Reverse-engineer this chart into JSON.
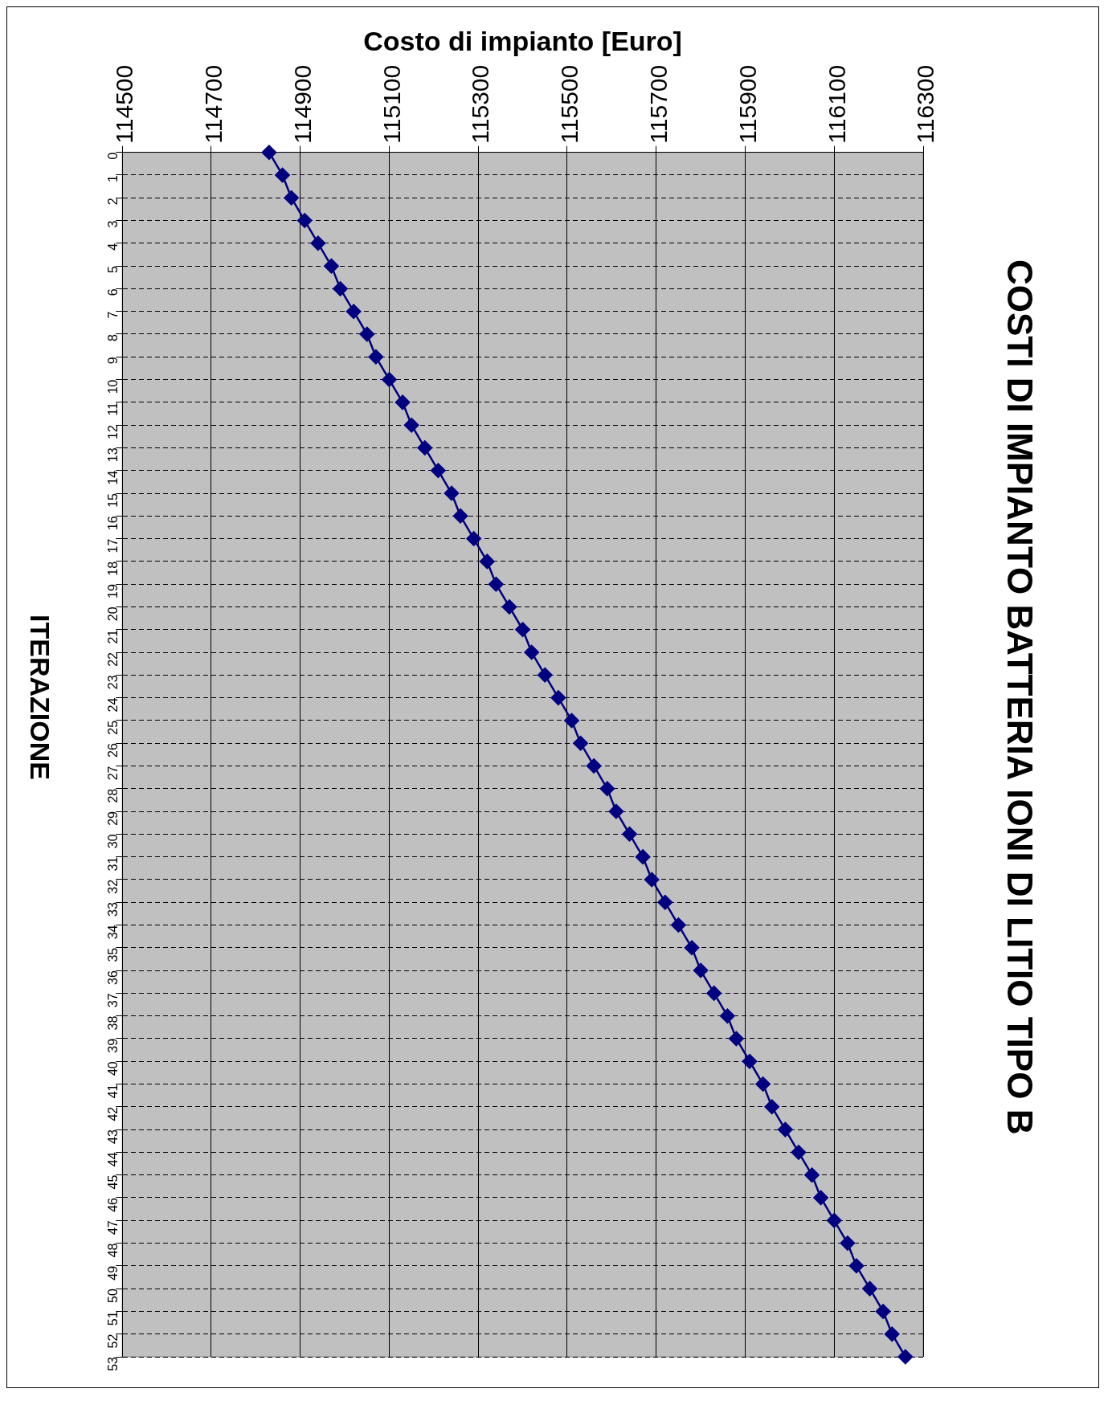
{
  "chart_data": {
    "type": "line",
    "title": "COSTI DI IMPIANTO BATTERIA IONI DI LITIO TIPO B",
    "xlabel": "Costo di impianto [Euro]",
    "ylabel": "ITERAZIONE",
    "orientation": "horizontal",
    "categories": [
      "0",
      "1",
      "2",
      "3",
      "4",
      "5",
      "6",
      "7",
      "8",
      "9",
      "10",
      "11",
      "12",
      "13",
      "14",
      "15",
      "16",
      "17",
      "18",
      "19",
      "20",
      "21",
      "22",
      "23",
      "24",
      "25",
      "26",
      "27",
      "28",
      "29",
      "30",
      "31",
      "32",
      "33",
      "34",
      "35",
      "36",
      "37",
      "38",
      "39",
      "40",
      "41",
      "42",
      "43",
      "44",
      "45",
      "46",
      "47",
      "48",
      "49",
      "50",
      "51",
      "52",
      "53"
    ],
    "series": [
      {
        "color": "#000080",
        "values": [
          114830,
          114860,
          114880,
          114910,
          114940,
          114970,
          114990,
          115020,
          115050,
          115070,
          115100,
          115130,
          115150,
          115180,
          115210,
          115240,
          115260,
          115290,
          115320,
          115340,
          115370,
          115400,
          115420,
          115450,
          115480,
          115510,
          115530,
          115560,
          115590,
          115610,
          115640,
          115670,
          115690,
          115720,
          115750,
          115780,
          115800,
          115830,
          115860,
          115880,
          115910,
          115940,
          115960,
          115990,
          116020,
          116050,
          116070,
          116100,
          116130,
          116150,
          116180,
          116210,
          116230,
          116260
        ]
      }
    ],
    "xlim": [
      114500,
      116300
    ],
    "xticks": [
      114500,
      114700,
      114900,
      115100,
      115300,
      115500,
      115700,
      115900,
      116100,
      116300
    ],
    "grid": true,
    "legend": false,
    "marker": "diamond",
    "line_style": "solid"
  }
}
